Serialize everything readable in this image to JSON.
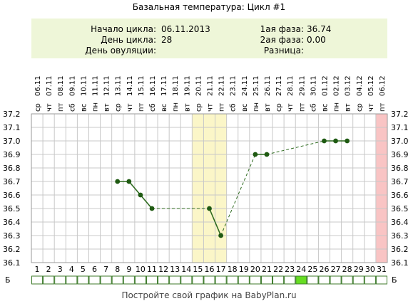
{
  "title": "Базальная температура: Цикл #1",
  "info": {
    "cycle_start_label": "Начало цикла:",
    "cycle_start_value": "06.11.2013",
    "cycle_day_label": "День цикла:",
    "cycle_day_value": "28",
    "ovulation_label": "День овуляции:",
    "ovulation_value": "",
    "phase1_label": "1ая фаза:",
    "phase1_value": "36.74",
    "phase2_label": "2ая фаза:",
    "phase2_value": "0.00",
    "diff_label": "Разница:",
    "diff_value": ""
  },
  "footer": "Постройте свой график на BabyPlan.ru",
  "chart_data": {
    "type": "line",
    "y_tick_labels": [
      "37.2",
      "37.1",
      "37.0",
      "36.9",
      "36.8",
      "36.7",
      "36.6",
      "36.5",
      "36.4",
      "36.3",
      "36.2",
      "36.1"
    ],
    "ylim": [
      36.1,
      37.2
    ],
    "y_step": 0.1,
    "dates": [
      "06.11",
      "07.11",
      "08.11",
      "09.11",
      "10.11",
      "11.11",
      "12.11",
      "13.11",
      "14.11",
      "15.11",
      "16.11",
      "17.11",
      "18.11",
      "19.11",
      "20.11",
      "21.11",
      "22.11",
      "23.11",
      "24.11",
      "25.11",
      "26.11",
      "27.11",
      "28.11",
      "29.11",
      "30.11",
      "01.12",
      "02.12",
      "03.12",
      "04.12",
      "05.12",
      "06.12"
    ],
    "weekdays": [
      "ср",
      "чт",
      "пт",
      "сб",
      "вс",
      "пн",
      "вт",
      "ср",
      "чт",
      "пт",
      "сб",
      "вс",
      "пн",
      "вт",
      "ср",
      "чт",
      "пт",
      "сб",
      "вс",
      "пн",
      "вт",
      "ср",
      "чт",
      "пт",
      "сб",
      "вс",
      "пн",
      "вт",
      "ср",
      "чт",
      "пт"
    ],
    "days": [
      1,
      2,
      3,
      4,
      5,
      6,
      7,
      8,
      9,
      10,
      11,
      12,
      13,
      14,
      15,
      16,
      17,
      18,
      19,
      20,
      21,
      22,
      23,
      24,
      25,
      26,
      27,
      28,
      29,
      30,
      31
    ],
    "temperatures": [
      null,
      null,
      null,
      null,
      null,
      null,
      null,
      36.7,
      36.7,
      36.6,
      36.5,
      null,
      null,
      null,
      null,
      36.5,
      36.3,
      null,
      null,
      36.9,
      36.9,
      null,
      null,
      null,
      null,
      37.0,
      37.0,
      37.0,
      null,
      null,
      null
    ],
    "highlight_days": [
      15,
      16,
      17
    ],
    "current_day": 31,
    "marked_box_day": 24,
    "bottom_row_label": "Б",
    "colors": {
      "line": "#2d6a1e",
      "point": "#1f5a12",
      "highlight": "#fbf6c8",
      "current_day": "#f9c4c4",
      "grid": "#c8c8c8",
      "box_mark": "#66dd22",
      "box_border": "#3c7a2a",
      "panel_bg": "#eef6d8"
    }
  }
}
